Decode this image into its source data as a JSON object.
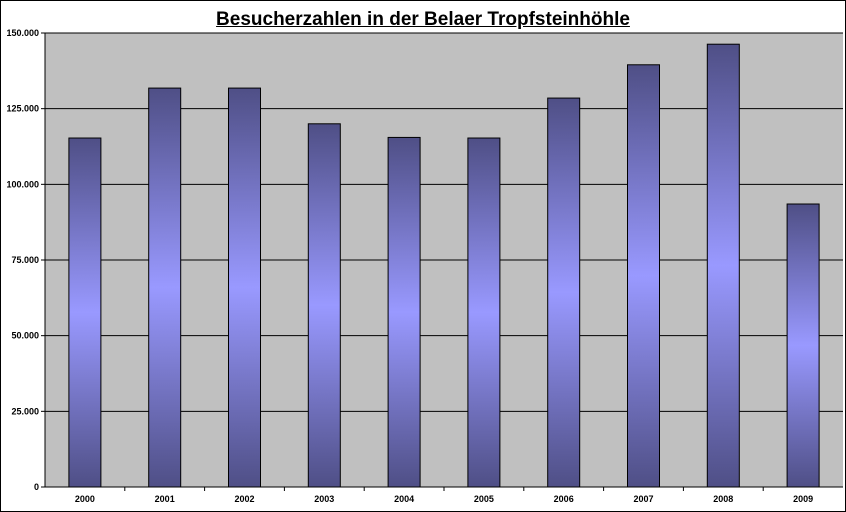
{
  "chart_data": {
    "type": "bar",
    "title": "Besucherzahlen in der Belaer Tropfsteinhöhle",
    "xlabel": "",
    "ylabel": "",
    "categories": [
      "2000",
      "2001",
      "2002",
      "2003",
      "2004",
      "2005",
      "2006",
      "2007",
      "2008",
      "2009"
    ],
    "values": [
      115300,
      131800,
      131800,
      120000,
      115500,
      115300,
      128500,
      139500,
      146300,
      93500
    ],
    "ylim": [
      0,
      150000
    ],
    "yticks": [
      0,
      25000,
      50000,
      75000,
      100000,
      125000,
      150000
    ],
    "ytick_labels": [
      "0",
      "25.000",
      "50.000",
      "75.000",
      "100.000",
      "125.000",
      "150.000"
    ],
    "grid": true,
    "legend": "none",
    "colors": {
      "plot_background": "#c0c0c0",
      "bar_edge": "#4f4f86",
      "bar_center": "#9999ff",
      "gridline": "#000000"
    }
  }
}
